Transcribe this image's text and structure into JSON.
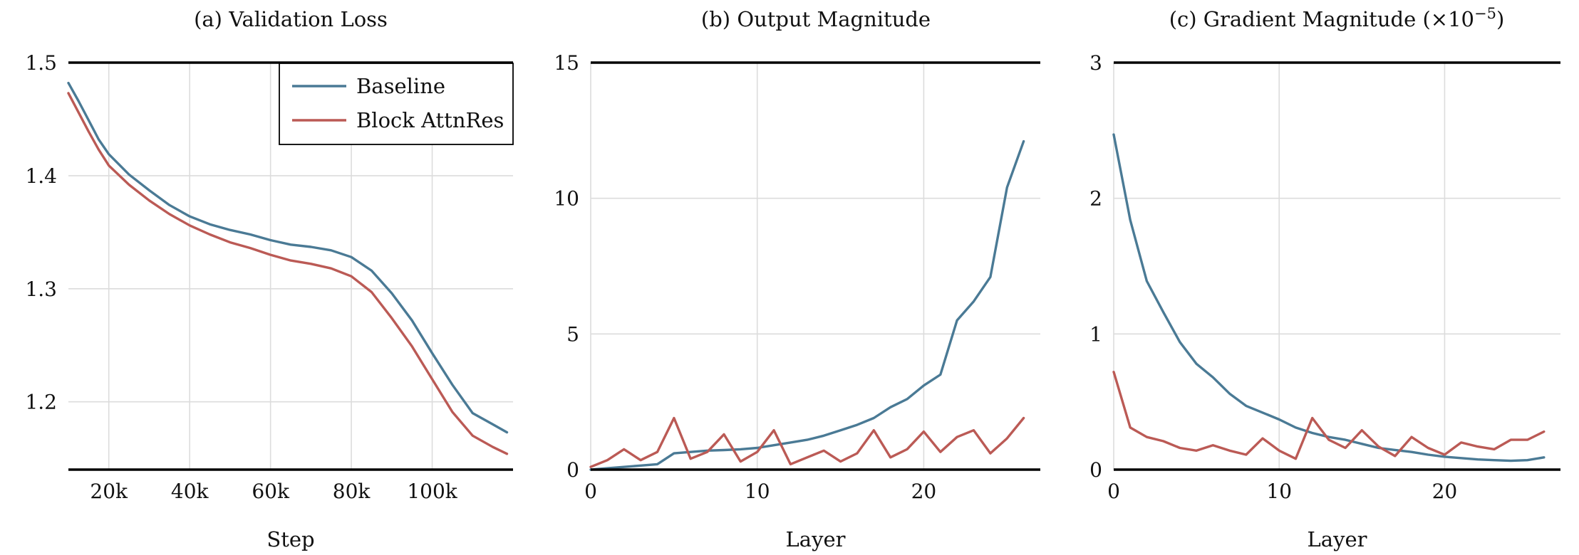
{
  "colors": {
    "baseline": "#4a7a95",
    "block": "#bb5a55"
  },
  "chart_data": [
    {
      "type": "line",
      "title": "(a) Validation Loss",
      "xlabel": "Step",
      "ylabel": "",
      "xlim": [
        10000,
        120000
      ],
      "ylim": [
        1.14,
        1.5
      ],
      "xticks": [
        20000,
        40000,
        60000,
        80000,
        100000
      ],
      "xtick_labels": [
        "20k",
        "40k",
        "60k",
        "80k",
        "100k"
      ],
      "yticks": [
        1.2,
        1.3,
        1.4,
        1.5
      ],
      "ytick_labels": [
        "1.2",
        "1.3",
        "1.4",
        "1.5"
      ],
      "grid": true,
      "legend": "top-right",
      "x": [
        10000,
        12500,
        15000,
        17500,
        20000,
        25000,
        30000,
        35000,
        40000,
        45000,
        50000,
        55000,
        60000,
        65000,
        70000,
        75000,
        80000,
        85000,
        90000,
        95000,
        100000,
        105000,
        110000,
        115000,
        118500
      ],
      "series": [
        {
          "name": "Baseline",
          "color": "baseline",
          "values": [
            1.482,
            1.466,
            1.449,
            1.432,
            1.419,
            1.401,
            1.387,
            1.374,
            1.364,
            1.357,
            1.352,
            1.348,
            1.343,
            1.339,
            1.337,
            1.334,
            1.328,
            1.316,
            1.296,
            1.272,
            1.243,
            1.215,
            1.19,
            1.18,
            1.173
          ]
        },
        {
          "name": "Block AttnRes",
          "color": "block",
          "values": [
            1.473,
            1.456,
            1.439,
            1.423,
            1.409,
            1.392,
            1.378,
            1.366,
            1.356,
            1.348,
            1.341,
            1.336,
            1.33,
            1.325,
            1.322,
            1.318,
            1.311,
            1.297,
            1.274,
            1.249,
            1.22,
            1.191,
            1.17,
            1.16,
            1.154
          ]
        }
      ]
    },
    {
      "type": "line",
      "title": "(b) Output Magnitude",
      "xlabel": "Layer",
      "ylabel": "",
      "xlim": [
        0,
        27
      ],
      "ylim": [
        0,
        15
      ],
      "xticks": [
        0,
        10,
        20
      ],
      "xtick_labels": [
        "0",
        "10",
        "20"
      ],
      "yticks": [
        0,
        5,
        10,
        15
      ],
      "ytick_labels": [
        "0",
        "5",
        "10",
        "15"
      ],
      "grid": true,
      "x": [
        0,
        1,
        2,
        3,
        4,
        5,
        6,
        7,
        8,
        9,
        10,
        11,
        12,
        13,
        14,
        15,
        16,
        17,
        18,
        19,
        20,
        21,
        22,
        23,
        24,
        25,
        26
      ],
      "series": [
        {
          "name": "Baseline",
          "color": "baseline",
          "values": [
            0.0,
            0.05,
            0.1,
            0.15,
            0.2,
            0.6,
            0.65,
            0.7,
            0.72,
            0.75,
            0.8,
            0.9,
            1.0,
            1.1,
            1.25,
            1.45,
            1.65,
            1.9,
            2.3,
            2.6,
            3.1,
            3.5,
            5.5,
            6.2,
            7.1,
            10.4,
            12.1
          ]
        },
        {
          "name": "Block AttnRes",
          "color": "block",
          "values": [
            0.1,
            0.35,
            0.75,
            0.35,
            0.65,
            1.9,
            0.4,
            0.65,
            1.3,
            0.3,
            0.65,
            1.45,
            0.2,
            0.45,
            0.7,
            0.3,
            0.6,
            1.45,
            0.45,
            0.75,
            1.4,
            0.65,
            1.2,
            1.45,
            0.6,
            1.15,
            1.9
          ]
        }
      ]
    },
    {
      "type": "line",
      "title": "(c) Gradient Magnitude (×10",
      "title_sup": "−5",
      "title_end": ")",
      "xlabel": "Layer",
      "ylabel": "",
      "xlim": [
        0,
        27
      ],
      "ylim": [
        0,
        3
      ],
      "xticks": [
        0,
        10,
        20
      ],
      "xtick_labels": [
        "0",
        "10",
        "20"
      ],
      "yticks": [
        0,
        1,
        2,
        3
      ],
      "ytick_labels": [
        "0",
        "1",
        "2",
        "3"
      ],
      "grid": true,
      "x": [
        0,
        1,
        2,
        3,
        4,
        5,
        6,
        7,
        8,
        9,
        10,
        11,
        12,
        13,
        14,
        15,
        16,
        17,
        18,
        19,
        20,
        21,
        22,
        23,
        24,
        25,
        26
      ],
      "series": [
        {
          "name": "Baseline",
          "color": "baseline",
          "values": [
            2.47,
            1.84,
            1.39,
            1.16,
            0.94,
            0.78,
            0.68,
            0.56,
            0.47,
            0.42,
            0.37,
            0.31,
            0.27,
            0.24,
            0.22,
            0.19,
            0.16,
            0.145,
            0.13,
            0.11,
            0.095,
            0.085,
            0.075,
            0.07,
            0.065,
            0.07,
            0.09
          ]
        },
        {
          "name": "Block AttnRes",
          "color": "block",
          "values": [
            0.72,
            0.31,
            0.24,
            0.21,
            0.16,
            0.14,
            0.18,
            0.14,
            0.11,
            0.23,
            0.14,
            0.08,
            0.38,
            0.22,
            0.16,
            0.29,
            0.17,
            0.1,
            0.24,
            0.16,
            0.11,
            0.2,
            0.17,
            0.15,
            0.22,
            0.22,
            0.28
          ]
        }
      ]
    }
  ]
}
